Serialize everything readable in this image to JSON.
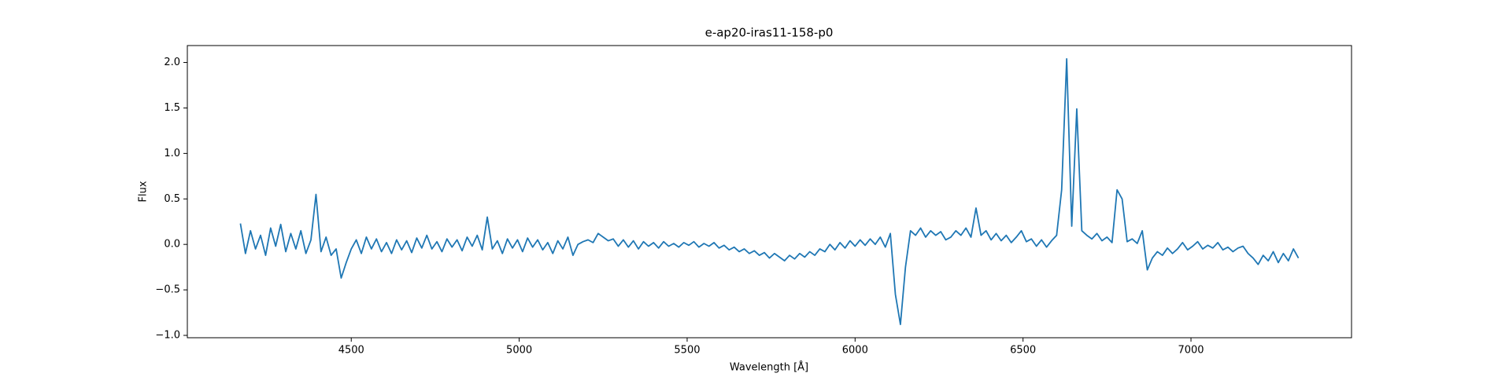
{
  "chart_data": {
    "type": "line",
    "title": "e-ap20-iras11-158-p0",
    "xlabel": "Wavelength [Å]",
    "ylabel": "Flux",
    "x": [
      4170,
      4185,
      4200,
      4215,
      4230,
      4245,
      4260,
      4275,
      4290,
      4305,
      4320,
      4335,
      4350,
      4365,
      4380,
      4395,
      4410,
      4425,
      4440,
      4455,
      4470,
      4485,
      4500,
      4515,
      4530,
      4545,
      4560,
      4575,
      4590,
      4605,
      4620,
      4635,
      4650,
      4665,
      4680,
      4695,
      4710,
      4725,
      4740,
      4755,
      4770,
      4785,
      4800,
      4815,
      4830,
      4845,
      4860,
      4875,
      4890,
      4905,
      4920,
      4935,
      4950,
      4965,
      4980,
      4995,
      5010,
      5025,
      5040,
      5055,
      5070,
      5085,
      5100,
      5115,
      5130,
      5145,
      5160,
      5175,
      5190,
      5205,
      5220,
      5235,
      5250,
      5265,
      5280,
      5295,
      5310,
      5325,
      5340,
      5355,
      5370,
      5385,
      5400,
      5415,
      5430,
      5445,
      5460,
      5475,
      5490,
      5505,
      5520,
      5535,
      5550,
      5565,
      5580,
      5595,
      5610,
      5625,
      5640,
      5655,
      5670,
      5685,
      5700,
      5715,
      5730,
      5745,
      5760,
      5775,
      5790,
      5805,
      5820,
      5835,
      5850,
      5865,
      5880,
      5895,
      5910,
      5925,
      5940,
      5955,
      5970,
      5985,
      6000,
      6015,
      6030,
      6045,
      6060,
      6075,
      6090,
      6105,
      6120,
      6135,
      6150,
      6165,
      6180,
      6195,
      6210,
      6225,
      6240,
      6255,
      6270,
      6285,
      6300,
      6315,
      6330,
      6345,
      6360,
      6375,
      6390,
      6405,
      6420,
      6435,
      6450,
      6465,
      6480,
      6495,
      6510,
      6525,
      6540,
      6555,
      6570,
      6585,
      6600,
      6615,
      6630,
      6645,
      6660,
      6675,
      6690,
      6705,
      6720,
      6735,
      6750,
      6765,
      6780,
      6795,
      6810,
      6825,
      6840,
      6855,
      6870,
      6885,
      6900,
      6915,
      6930,
      6945,
      6960,
      6975,
      6990,
      7005,
      7020,
      7035,
      7050,
      7065,
      7080,
      7095,
      7110,
      7125,
      7140,
      7155,
      7170,
      7185,
      7200,
      7215,
      7230,
      7245,
      7260,
      7275,
      7290,
      7305,
      7320
    ],
    "series": [
      {
        "color": "#1f77b4",
        "values": [
          0.23,
          -0.1,
          0.15,
          -0.05,
          0.1,
          -0.12,
          0.18,
          -0.02,
          0.22,
          -0.08,
          0.12,
          -0.05,
          0.15,
          -0.1,
          0.05,
          0.55,
          -0.08,
          0.08,
          -0.12,
          -0.05,
          -0.37,
          -0.2,
          -0.05,
          0.05,
          -0.1,
          0.08,
          -0.05,
          0.06,
          -0.08,
          0.02,
          -0.1,
          0.05,
          -0.06,
          0.04,
          -0.09,
          0.07,
          -0.04,
          0.1,
          -0.05,
          0.03,
          -0.08,
          0.06,
          -0.03,
          0.05,
          -0.07,
          0.08,
          -0.02,
          0.1,
          -0.06,
          0.3,
          -0.05,
          0.04,
          -0.1,
          0.06,
          -0.04,
          0.05,
          -0.08,
          0.07,
          -0.03,
          0.05,
          -0.06,
          0.02,
          -0.1,
          0.04,
          -0.05,
          0.08,
          -0.12,
          0.0,
          0.03,
          0.05,
          0.02,
          0.12,
          0.08,
          0.04,
          0.06,
          -0.02,
          0.05,
          -0.03,
          0.04,
          -0.05,
          0.03,
          -0.02,
          0.02,
          -0.04,
          0.03,
          -0.02,
          0.01,
          -0.03,
          0.02,
          -0.01,
          0.03,
          -0.03,
          0.01,
          -0.02,
          0.02,
          -0.04,
          -0.01,
          -0.06,
          -0.03,
          -0.08,
          -0.05,
          -0.1,
          -0.07,
          -0.12,
          -0.09,
          -0.15,
          -0.1,
          -0.14,
          -0.18,
          -0.12,
          -0.16,
          -0.1,
          -0.14,
          -0.08,
          -0.12,
          -0.05,
          -0.08,
          0.0,
          -0.06,
          0.02,
          -0.04,
          0.04,
          -0.02,
          0.05,
          -0.01,
          0.06,
          0.0,
          0.08,
          -0.03,
          0.12,
          -0.55,
          -0.88,
          -0.25,
          0.15,
          0.1,
          0.18,
          0.08,
          0.15,
          0.1,
          0.14,
          0.05,
          0.08,
          0.15,
          0.1,
          0.18,
          0.08,
          0.4,
          0.1,
          0.15,
          0.05,
          0.12,
          0.04,
          0.1,
          0.02,
          0.08,
          0.15,
          0.03,
          0.06,
          -0.02,
          0.05,
          -0.03,
          0.04,
          0.1,
          0.6,
          2.04,
          0.2,
          1.49,
          0.15,
          0.1,
          0.06,
          0.12,
          0.04,
          0.08,
          0.02,
          0.6,
          0.5,
          0.03,
          0.06,
          0.01,
          0.15,
          -0.28,
          -0.15,
          -0.08,
          -0.12,
          -0.04,
          -0.1,
          -0.05,
          0.02,
          -0.06,
          -0.02,
          0.03,
          -0.05,
          -0.01,
          -0.04,
          0.02,
          -0.06,
          -0.03,
          -0.08,
          -0.04,
          -0.02,
          -0.1,
          -0.15,
          -0.22,
          -0.12,
          -0.18,
          -0.08,
          -0.2,
          -0.1,
          -0.18,
          -0.05,
          -0.15
        ]
      }
    ],
    "xlim": [
      4012,
      7478
    ],
    "xticks": [
      4500,
      5000,
      5500,
      6000,
      6500,
      7000
    ],
    "ylim": [
      -1.026,
      2.186
    ],
    "yticks": [
      {
        "value": -1.0,
        "label": "−1.0"
      },
      {
        "value": -0.5,
        "label": "−0.5"
      },
      {
        "value": 0.0,
        "label": "0.0"
      },
      0.5,
      {
        "value": 1.0,
        "label": "1.0"
      },
      1.5,
      {
        "value": 2.0,
        "label": "2.0"
      }
    ],
    "grid": false
  }
}
